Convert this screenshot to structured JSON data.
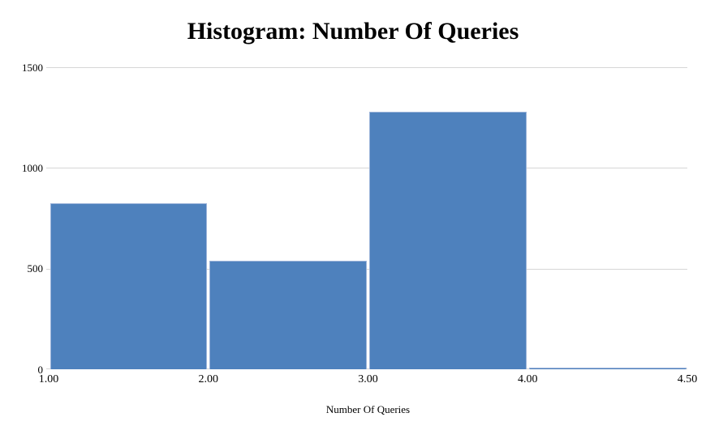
{
  "chart_data": {
    "type": "bar",
    "subtype": "histogram",
    "title": "Histogram: Number Of Queries",
    "xlabel": "Number Of Queries",
    "ylabel": "",
    "bin_edges": [
      "1.00",
      "2.00",
      "3.00",
      "4.00",
      "4.50"
    ],
    "bins": [
      {
        "range": [
          1.0,
          2.0
        ],
        "count": 825
      },
      {
        "range": [
          2.0,
          3.0
        ],
        "count": 540
      },
      {
        "range": [
          3.0,
          4.0
        ],
        "count": 1280
      },
      {
        "range": [
          4.0,
          4.5
        ],
        "count": 10
      }
    ],
    "values": [
      825,
      540,
      1280,
      10
    ],
    "ylim": [
      0,
      1500
    ],
    "yticks": [
      0,
      500,
      1000,
      1500
    ],
    "grid": true,
    "legend_position": "none",
    "bar_color": "#4E81BD",
    "bar_border_color": "#9BB3D9",
    "gridline_color": "#D6D6D6",
    "text_color": "#000000",
    "background_color": "#FFFFFF"
  }
}
